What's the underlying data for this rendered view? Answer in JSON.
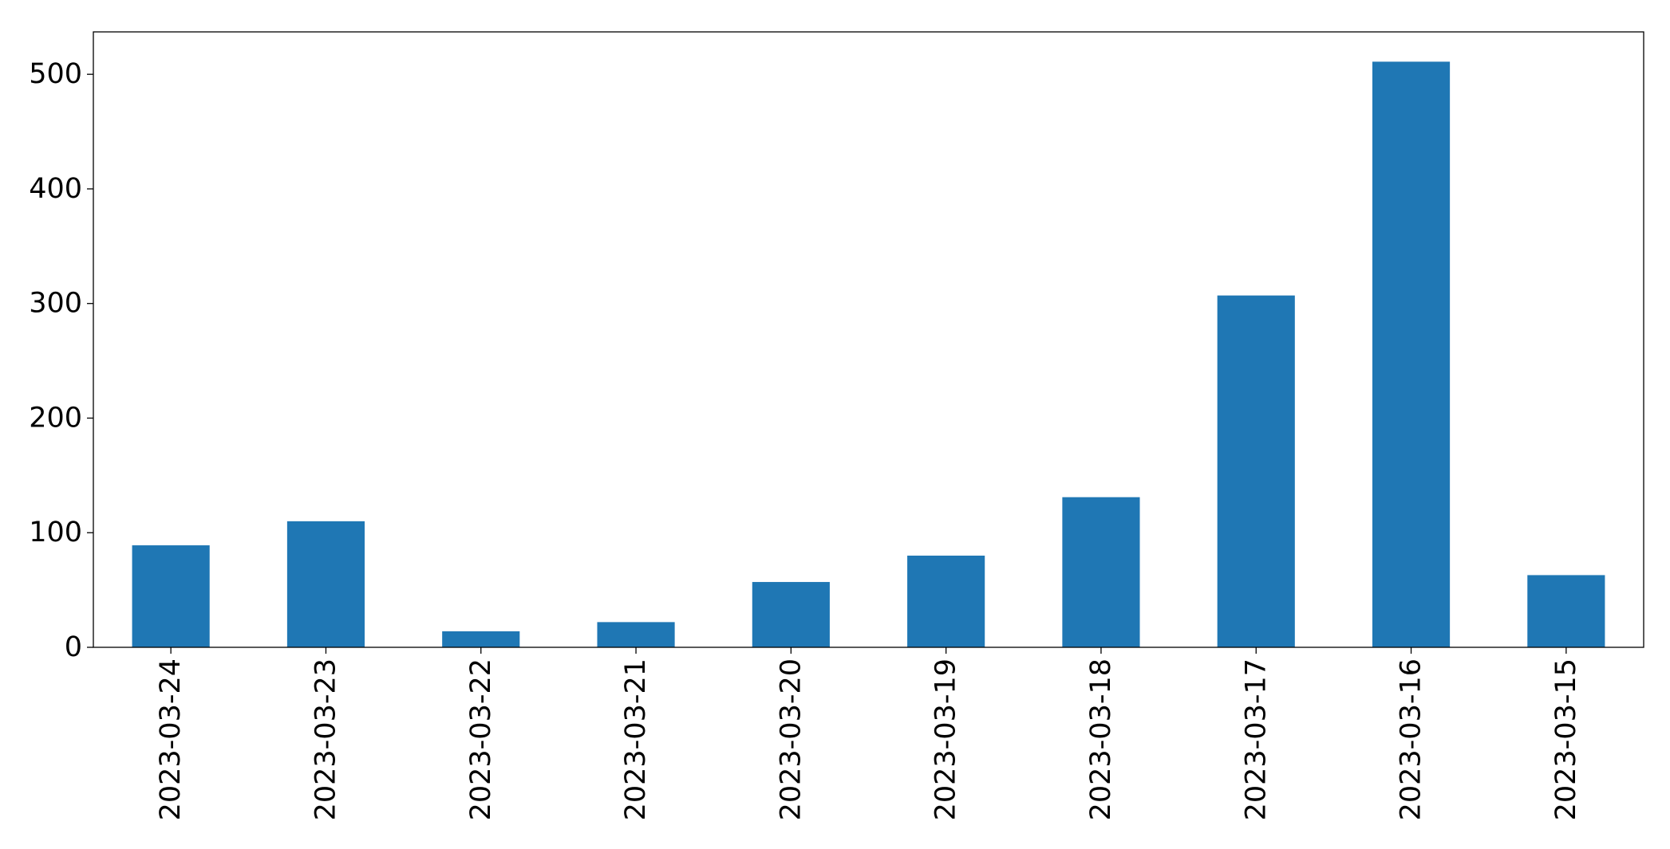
{
  "chart_data": {
    "type": "bar",
    "title": "",
    "xlabel": "",
    "ylabel": "",
    "categories": [
      "2023-03-24",
      "2023-03-23",
      "2023-03-22",
      "2023-03-21",
      "2023-03-20",
      "2023-03-19",
      "2023-03-18",
      "2023-03-17",
      "2023-03-16",
      "2023-03-15"
    ],
    "values": [
      89,
      110,
      14,
      22,
      57,
      80,
      131,
      307,
      511,
      63
    ],
    "ylim": [
      0,
      537
    ],
    "yticks": [
      0,
      100,
      200,
      300,
      400,
      500
    ],
    "grid": false,
    "legend": "none",
    "bar_color": "#1f77b4"
  }
}
